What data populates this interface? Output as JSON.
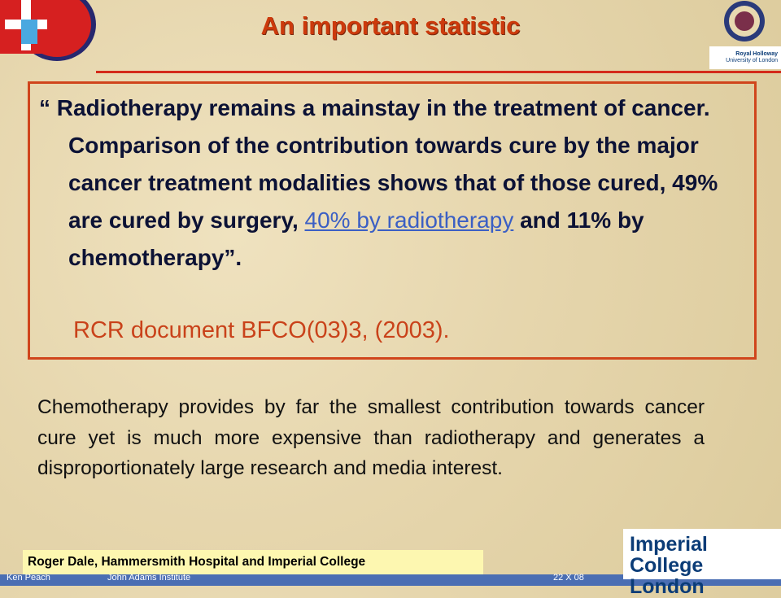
{
  "header": {
    "title": "An important statistic",
    "partner_logo": [
      "Royal Holloway",
      "University of London"
    ]
  },
  "quote": {
    "parts": [
      "“ Radiotherapy remains a mainstay in the treatment of cancer. Comparison of the contribution towards cure by the major cancer treatment modalities shows that of those cured, 49% are cured by surgery, ",
      "40% by radiotherapy",
      " and 11% by chemotherapy”."
    ],
    "citation": "RCR document BFCO(03)3, (2003)."
  },
  "body": {
    "paragraph": "Chemotherapy provides by far the smallest contribution towards cancer cure yet is much more expensive than radiotherapy and generates a disproportionately large research and media interest."
  },
  "footer": {
    "note": "Roger Dale, Hammersmith Hospital and Imperial College",
    "author": "Ken Peach",
    "institute": "John Adams Institute",
    "date": "22 X 08",
    "logo": [
      "Imperial College",
      "London"
    ]
  }
}
